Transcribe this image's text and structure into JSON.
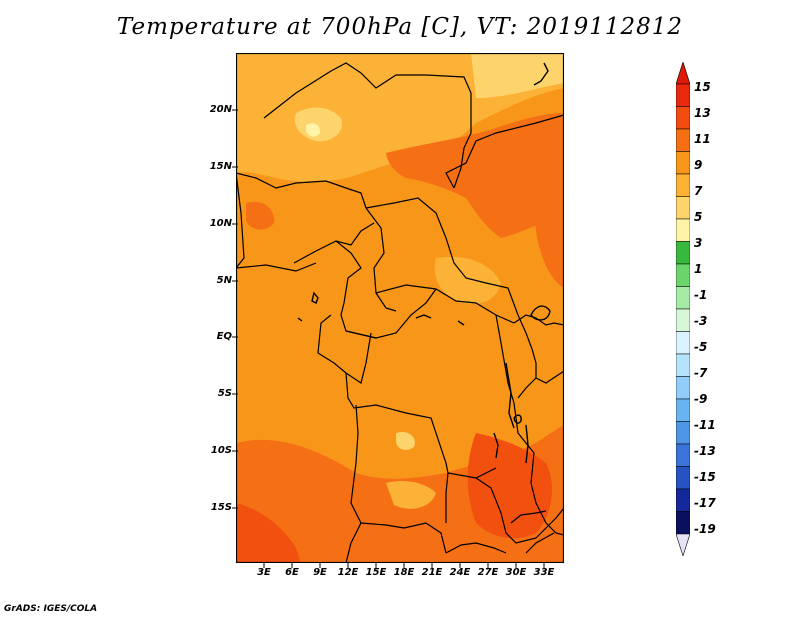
{
  "title": "Temperature at 700hPa [C], VT: 2019112812",
  "footer": "GrADS: IGES/COLA",
  "latitude_labels": [
    "20N",
    "15N",
    "10N",
    "5N",
    "EQ",
    "5S",
    "10S",
    "15S"
  ],
  "longitude_labels": [
    "3E",
    "6E",
    "9E",
    "12E",
    "15E",
    "18E",
    "21E",
    "24E",
    "27E",
    "30E",
    "33E"
  ],
  "colorbar": {
    "labels": [
      "15",
      "13",
      "11",
      "9",
      "7",
      "5",
      "3",
      "1",
      "-1",
      "-3",
      "-5",
      "-7",
      "-9",
      "-11",
      "-13",
      "-15",
      "-17",
      "-19"
    ],
    "colors": [
      "#e8290e",
      "#f24c10",
      "#f56f14",
      "#f8951a",
      "#fbb036",
      "#fdd46b",
      "#fff3a8",
      "#38b83c",
      "#6bd46b",
      "#a5eaa5",
      "#d7f7d7",
      "#d9f4ff",
      "#b5e3fb",
      "#92ccf8",
      "#69b3f0",
      "#4f97e6",
      "#3a74d8",
      "#2752c2",
      "#14289a",
      "#0a0f5e"
    ],
    "top_triangle_color": "#dd1a08",
    "bottom_triangle_color": "#e4e4f6"
  },
  "map_colors": {
    "base": "#f8961a",
    "light": "#fbb237",
    "pale": "#fdd46b",
    "warm": "#f56f14",
    "hot": "#f2500f",
    "border": "#000000"
  }
}
